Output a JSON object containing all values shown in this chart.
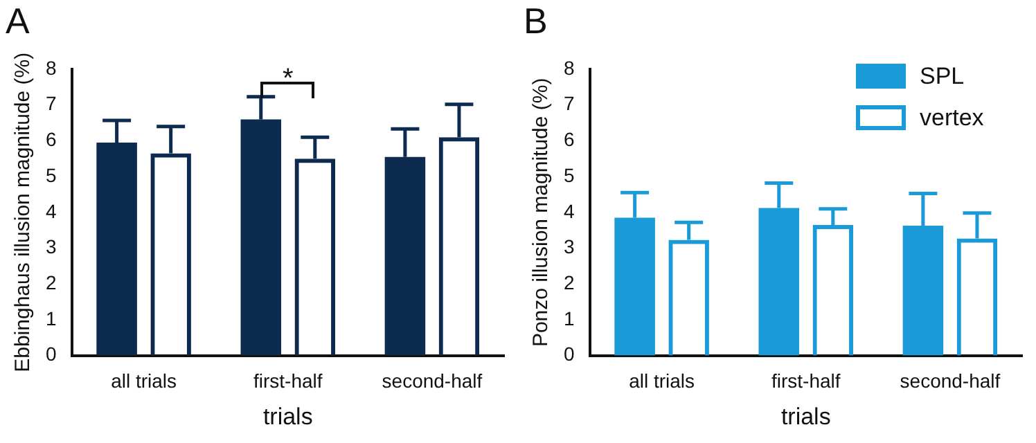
{
  "chart_data": [
    {
      "type": "bar",
      "title": "A",
      "xlabel": "trials",
      "ylabel": "Ebbinghaus illusion magnitude (%)",
      "categories": [
        "all trials",
        "first-half",
        "second-half"
      ],
      "series": [
        {
          "color": "#0d2a4f",
          "values": [
            5.95,
            6.6,
            5.55
          ],
          "errors": [
            [
              5.95,
              6.57
            ],
            [
              6.6,
              7.23
            ],
            [
              5.55,
              6.33
            ]
          ]
        },
        {
          "color": "#0d2a4f",
          "values": [
            5.65,
            5.5,
            6.1
          ],
          "errors": [
            [
              5.65,
              6.4
            ],
            [
              5.5,
              6.1
            ],
            [
              6.1,
              7.02
            ]
          ]
        }
      ],
      "ylim": [
        0,
        8
      ],
      "yticks": [
        0,
        1,
        2,
        3,
        4,
        5,
        6,
        7,
        8
      ],
      "grid": false,
      "legend": false,
      "annotations": [
        "*"
      ]
    },
    {
      "type": "bar",
      "title": "B",
      "xlabel": "trials",
      "ylabel": "Ponzo illusion magnitude (%)",
      "categories": [
        "all trials",
        "first-half",
        "second-half"
      ],
      "series": [
        {
          "name": "SPL",
          "color": "#1a9ad6",
          "values": [
            3.85,
            4.12,
            3.63
          ],
          "errors": [
            [
              3.85,
              4.55
            ],
            [
              4.12,
              4.82
            ],
            [
              3.63,
              4.53
            ]
          ]
        },
        {
          "name": "vertex",
          "color": "#1a9ad6",
          "values": [
            3.23,
            3.65,
            3.27
          ],
          "errors": [
            [
              3.23,
              3.72
            ],
            [
              3.65,
              4.1
            ],
            [
              3.27,
              3.98
            ]
          ]
        }
      ],
      "ylim": [
        0,
        8
      ],
      "yticks": [
        0,
        1,
        2,
        3,
        4,
        5,
        6,
        7,
        8
      ],
      "grid": false,
      "legend": "top right"
    }
  ]
}
